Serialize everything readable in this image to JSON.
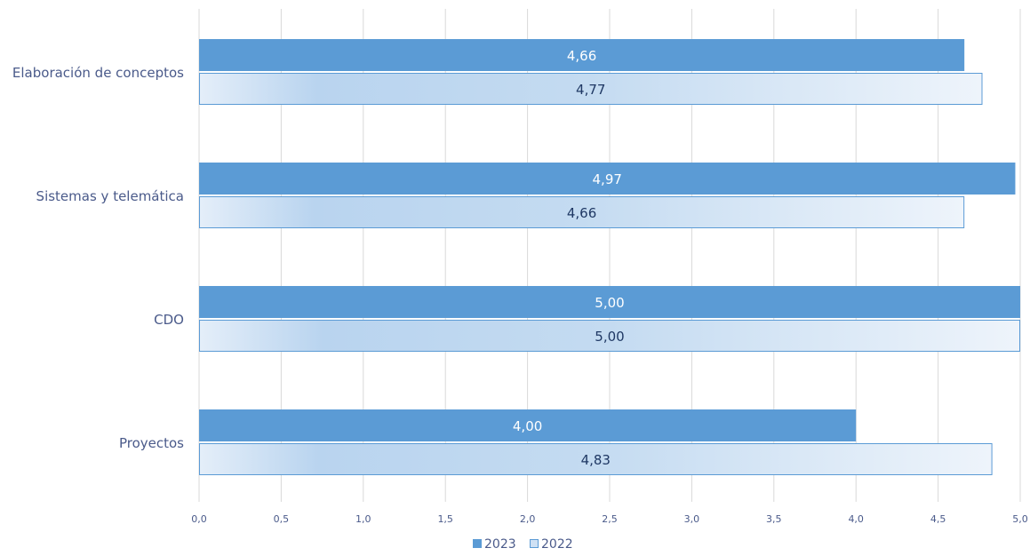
{
  "chart_data": {
    "type": "bar",
    "orientation": "horizontal",
    "categories": [
      "Elaboración de conceptos",
      "Sistemas y telemática",
      "CDO",
      "Proyectos"
    ],
    "series": [
      {
        "name": "2023",
        "values": [
          4.66,
          4.97,
          5.0,
          4.0
        ],
        "labels": [
          "4,66",
          "4,97",
          "5,00",
          "4,00"
        ],
        "color": "#5b9bd5"
      },
      {
        "name": "2022",
        "values": [
          4.77,
          4.66,
          5.0,
          4.83
        ],
        "labels": [
          "4,77",
          "4,66",
          "5,00",
          "4,83"
        ],
        "color": "#bdd7ee"
      }
    ],
    "xlim": [
      0,
      5
    ],
    "x_ticks": [
      0,
      0.5,
      1,
      1.5,
      2,
      2.5,
      3,
      3.5,
      4,
      4.5,
      5
    ],
    "x_tick_labels": [
      "0,0",
      "0,5",
      "1,0",
      "1,5",
      "2,0",
      "2,5",
      "3,0",
      "3,5",
      "4,0",
      "4,5",
      "5,0"
    ],
    "grid": true,
    "legend_position": "bottom-center",
    "colors": {
      "label_color": "#4a5a8a",
      "gridline": "#d9d9d9",
      "bar_2023": "#5b9bd5",
      "bar_2022_light": "#ddeaf7",
      "bar_2022_mid": "#b4d0ee",
      "bar_2022_border": "#5b9bd5",
      "value_light": "#ffffff",
      "value_dark": "#1f3864"
    }
  }
}
